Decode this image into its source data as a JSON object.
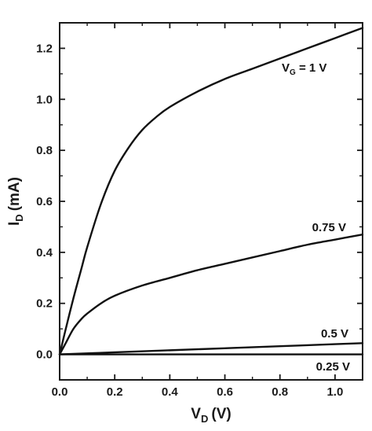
{
  "chart_data": {
    "type": "line",
    "xlabel": "V",
    "xlabel_sub": "D",
    "xlabel_unit": "(V)",
    "ylabel": "I",
    "ylabel_sub": "D",
    "ylabel_unit": "(mA)",
    "xlim": [
      0.0,
      1.1
    ],
    "ylim": [
      -0.1,
      1.3
    ],
    "x_ticks": [
      {
        "value": 0.0,
        "label": "0.0"
      },
      {
        "value": 0.2,
        "label": "0.2"
      },
      {
        "value": 0.4,
        "label": "0.4"
      },
      {
        "value": 0.6,
        "label": "0.6"
      },
      {
        "value": 0.8,
        "label": "0.8"
      },
      {
        "value": 1.0,
        "label": "1.0"
      }
    ],
    "y_ticks": [
      {
        "value": 0.0,
        "label": "0.0"
      },
      {
        "value": 0.2,
        "label": "0.2"
      },
      {
        "value": 0.4,
        "label": "0.4"
      },
      {
        "value": 0.6,
        "label": "0.6"
      },
      {
        "value": 0.8,
        "label": "0.8"
      },
      {
        "value": 1.0,
        "label": "1.0"
      },
      {
        "value": 1.2,
        "label": "1.2"
      }
    ],
    "grid": false,
    "series": [
      {
        "label_main": "V",
        "label_sub": "G",
        "label_rest": " = 1 V",
        "x": [
          0.0,
          0.02,
          0.05,
          0.08,
          0.1,
          0.15,
          0.2,
          0.25,
          0.3,
          0.35,
          0.4,
          0.5,
          0.6,
          0.7,
          0.8,
          0.9,
          1.0,
          1.1
        ],
        "y": [
          0.0,
          0.09,
          0.22,
          0.34,
          0.42,
          0.59,
          0.72,
          0.81,
          0.88,
          0.93,
          0.97,
          1.03,
          1.08,
          1.12,
          1.16,
          1.2,
          1.24,
          1.28
        ]
      },
      {
        "label_main": "0.75 V",
        "x": [
          0.0,
          0.02,
          0.05,
          0.08,
          0.1,
          0.15,
          0.2,
          0.3,
          0.4,
          0.5,
          0.6,
          0.7,
          0.8,
          0.9,
          1.0,
          1.1
        ],
        "y": [
          0.0,
          0.04,
          0.1,
          0.14,
          0.16,
          0.2,
          0.23,
          0.27,
          0.3,
          0.33,
          0.355,
          0.38,
          0.405,
          0.43,
          0.45,
          0.47
        ]
      },
      {
        "label_main": "0.5 V",
        "x": [
          0.0,
          0.2,
          0.4,
          0.6,
          0.8,
          1.0,
          1.1
        ],
        "y": [
          0.0,
          0.008,
          0.016,
          0.024,
          0.032,
          0.04,
          0.044
        ]
      },
      {
        "label_main": "0.25 V",
        "x": [
          0.0,
          1.1
        ],
        "y": [
          0.0,
          0.0
        ]
      }
    ]
  }
}
